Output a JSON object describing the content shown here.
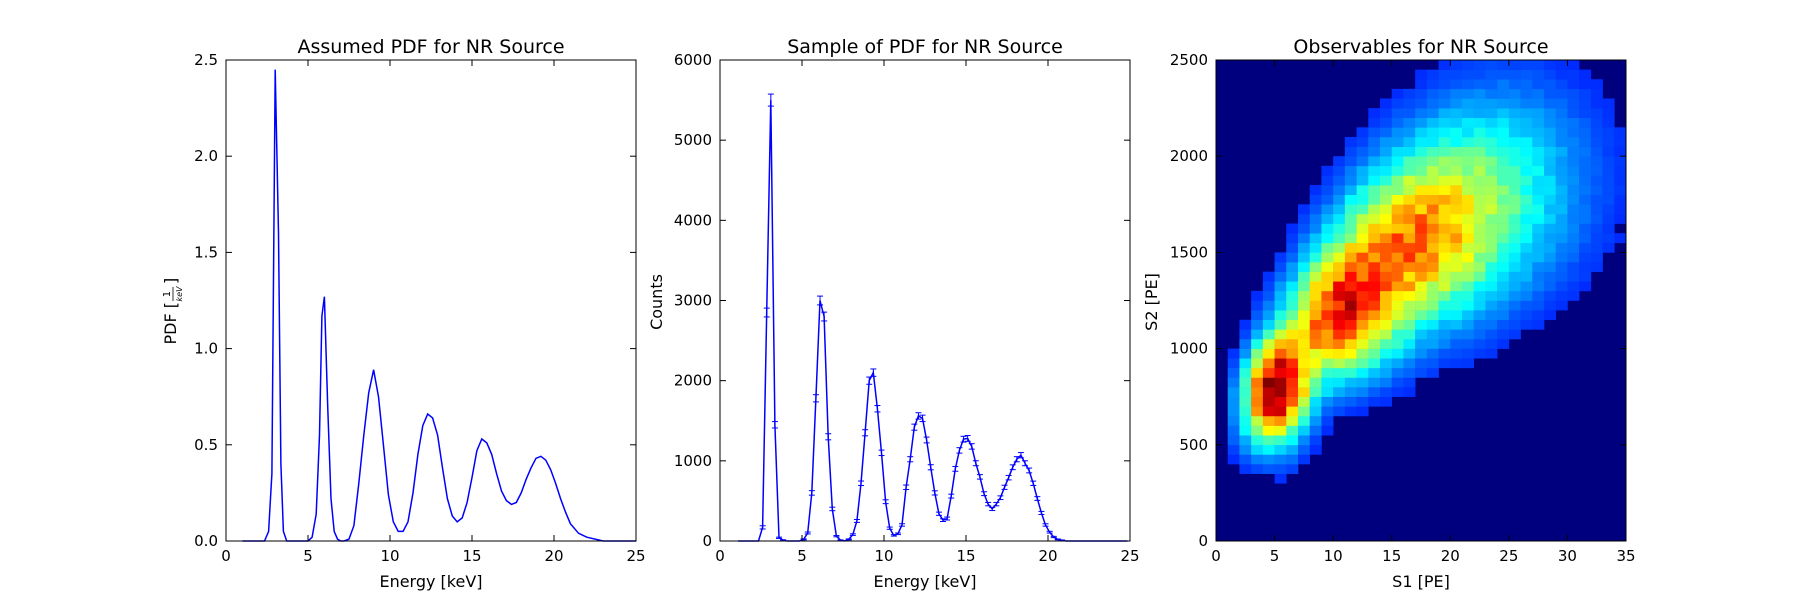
{
  "chart_data": [
    {
      "type": "line",
      "title": "Assumed PDF for NR Source",
      "xlabel": "Energy [keV]",
      "ylabel": "PDF [1/keV]",
      "ylabel_prefix": "PDF [",
      "ylabel_num": "1",
      "ylabel_den": "keV",
      "ylabel_suffix": "]",
      "xlim": [
        0,
        25
      ],
      "ylim": [
        0,
        2.5
      ],
      "xticks": [
        0,
        5,
        10,
        15,
        20,
        25
      ],
      "xtick_labels": [
        "0",
        "5",
        "10",
        "15",
        "20",
        "25"
      ],
      "yticks": [
        0,
        0.5,
        1.0,
        1.5,
        2.0,
        2.5
      ],
      "ytick_labels": [
        "0.0",
        "0.5",
        "1.0",
        "1.5",
        "2.0",
        "2.5"
      ],
      "grid": false,
      "color": "#0000ff",
      "x": [
        1.0,
        2.0,
        2.35,
        2.6,
        2.8,
        3.0,
        3.2,
        3.35,
        3.5,
        3.7,
        4.0,
        4.5,
        5.0,
        5.25,
        5.5,
        5.7,
        5.85,
        6.0,
        6.2,
        6.4,
        6.6,
        6.8,
        7.0,
        7.2,
        7.5,
        7.8,
        8.1,
        8.4,
        8.7,
        9.0,
        9.3,
        9.6,
        9.9,
        10.2,
        10.5,
        10.8,
        11.1,
        11.4,
        11.7,
        12.0,
        12.3,
        12.6,
        12.9,
        13.2,
        13.5,
        13.8,
        14.1,
        14.4,
        14.7,
        15.0,
        15.3,
        15.6,
        15.9,
        16.2,
        16.5,
        16.8,
        17.1,
        17.4,
        17.7,
        18.0,
        18.3,
        18.6,
        18.9,
        19.2,
        19.5,
        19.8,
        20.1,
        20.4,
        20.7,
        21.0,
        21.5,
        22.0,
        23.0,
        24.0,
        25.0
      ],
      "y": [
        0.0,
        0.0,
        0.0,
        0.05,
        0.35,
        2.45,
        1.6,
        0.4,
        0.05,
        0.0,
        0.0,
        0.0,
        0.0,
        0.02,
        0.14,
        0.55,
        1.17,
        1.27,
        0.7,
        0.22,
        0.05,
        0.01,
        0.0,
        0.0,
        0.01,
        0.08,
        0.3,
        0.55,
        0.77,
        0.89,
        0.75,
        0.5,
        0.24,
        0.1,
        0.05,
        0.05,
        0.1,
        0.25,
        0.45,
        0.6,
        0.66,
        0.64,
        0.55,
        0.38,
        0.22,
        0.13,
        0.1,
        0.12,
        0.2,
        0.33,
        0.47,
        0.53,
        0.51,
        0.45,
        0.35,
        0.26,
        0.21,
        0.19,
        0.2,
        0.25,
        0.32,
        0.38,
        0.43,
        0.44,
        0.42,
        0.37,
        0.3,
        0.22,
        0.15,
        0.09,
        0.04,
        0.02,
        0.0,
        0.0,
        0.0
      ]
    },
    {
      "type": "line",
      "title": "Sample of PDF for NR Source",
      "xlabel": "Energy [keV]",
      "ylabel": "Counts",
      "xlim": [
        0,
        25
      ],
      "ylim": [
        0,
        6000
      ],
      "xticks": [
        0,
        5,
        10,
        15,
        20,
        25
      ],
      "xtick_labels": [
        "0",
        "5",
        "10",
        "15",
        "20",
        "25"
      ],
      "yticks": [
        0,
        1000,
        2000,
        3000,
        4000,
        5000,
        6000
      ],
      "ytick_labels": [
        "0",
        "1000",
        "2000",
        "3000",
        "4000",
        "5000",
        "6000"
      ],
      "grid": false,
      "color": "#0000ff",
      "markers": "errorbar",
      "x": [
        1.1,
        1.35,
        1.6,
        1.85,
        2.1,
        2.35,
        2.6,
        2.85,
        3.1,
        3.35,
        3.6,
        3.85,
        4.1,
        4.35,
        4.6,
        4.85,
        5.1,
        5.35,
        5.6,
        5.85,
        6.1,
        6.35,
        6.6,
        6.85,
        7.1,
        7.35,
        7.6,
        7.85,
        8.1,
        8.35,
        8.6,
        8.85,
        9.1,
        9.35,
        9.6,
        9.85,
        10.1,
        10.35,
        10.6,
        10.85,
        11.1,
        11.35,
        11.6,
        11.85,
        12.1,
        12.35,
        12.6,
        12.85,
        13.1,
        13.35,
        13.6,
        13.85,
        14.1,
        14.35,
        14.6,
        14.85,
        15.1,
        15.35,
        15.6,
        15.85,
        16.1,
        16.35,
        16.6,
        16.85,
        17.1,
        17.35,
        17.6,
        17.85,
        18.1,
        18.35,
        18.6,
        18.85,
        19.1,
        19.35,
        19.6,
        19.85,
        20.1,
        20.35,
        20.6,
        20.85,
        21.1,
        21.35,
        21.6,
        21.85,
        22.1,
        22.35,
        22.6,
        22.85,
        23.1,
        23.35,
        23.6,
        23.85,
        24.1,
        24.35,
        24.6,
        24.85
      ],
      "y": [
        0,
        0,
        0,
        0,
        0,
        0,
        170,
        2850,
        5500,
        1450,
        40,
        10,
        0,
        0,
        0,
        0,
        20,
        100,
        600,
        1780,
        3000,
        2800,
        1300,
        400,
        60,
        10,
        0,
        20,
        80,
        250,
        720,
        1350,
        2000,
        2100,
        1650,
        1100,
        490,
        160,
        70,
        90,
        200,
        670,
        1020,
        1420,
        1560,
        1530,
        1260,
        920,
        600,
        340,
        260,
        280,
        560,
        900,
        1130,
        1270,
        1280,
        1180,
        970,
        800,
        590,
        460,
        400,
        460,
        540,
        670,
        790,
        920,
        1020,
        1070,
        970,
        880,
        720,
        530,
        350,
        200,
        110,
        50,
        20,
        10,
        0,
        0,
        0,
        0,
        0,
        0,
        0,
        0,
        0,
        0,
        0,
        0,
        0,
        0,
        0,
        0
      ],
      "yerr": [
        0,
        0,
        0,
        0,
        0,
        0,
        20,
        55,
        75,
        40,
        8,
        5,
        0,
        0,
        0,
        0,
        6,
        12,
        28,
        45,
        55,
        55,
        38,
        22,
        8,
        4,
        0,
        6,
        10,
        18,
        28,
        38,
        45,
        46,
        40,
        34,
        24,
        14,
        9,
        10,
        15,
        28,
        32,
        38,
        40,
        40,
        36,
        32,
        26,
        20,
        17,
        18,
        24,
        30,
        34,
        36,
        36,
        34,
        31,
        28,
        24,
        21,
        20,
        21,
        23,
        26,
        28,
        30,
        32,
        33,
        31,
        30,
        27,
        23,
        19,
        15,
        11,
        8,
        5,
        3,
        0,
        0,
        0,
        0,
        0,
        0,
        0,
        0,
        0,
        0,
        0,
        0,
        0,
        0,
        0,
        0
      ]
    },
    {
      "type": "heatmap",
      "title": "Observables for NR Source",
      "xlabel": "S1 [PE]",
      "ylabel": "S2 [PE]",
      "xlim": [
        0,
        35
      ],
      "ylim": [
        0,
        2500
      ],
      "xticks": [
        0,
        5,
        10,
        15,
        20,
        25,
        30,
        35
      ],
      "xtick_labels": [
        "0",
        "5",
        "10",
        "15",
        "20",
        "25",
        "30",
        "35"
      ],
      "yticks": [
        0,
        500,
        1000,
        1500,
        2000,
        2500
      ],
      "ytick_labels": [
        "0",
        "500",
        "1000",
        "1500",
        "2000",
        "2500"
      ],
      "grid": false,
      "colormap": "jet",
      "background": "#00007f",
      "bins_x": 35,
      "bins_y": 50,
      "density": {
        "peak1": {
          "s1": 5.2,
          "s2": 780,
          "weight": 1.0,
          "sigma_s1": 1.8,
          "sigma_s2": 190
        },
        "peak2": {
          "s1": 10.5,
          "s2": 1180,
          "weight": 0.7,
          "sigma_s1": 3.2,
          "sigma_s2": 220
        },
        "ridge_end": {
          "s1": 16,
          "s2": 1560,
          "weight": 0.55,
          "sigma_s1": 5.0,
          "sigma_s2": 300
        },
        "tail": {
          "s1": 22,
          "s2": 1850,
          "weight": 0.25,
          "sigma_s1": 6.0,
          "sigma_s2": 380
        }
      }
    }
  ]
}
